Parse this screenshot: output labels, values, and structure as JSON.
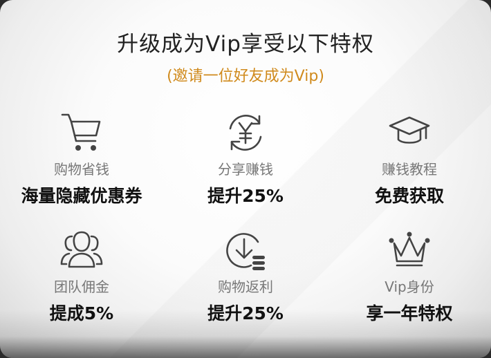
{
  "header": {
    "title": "升级成为Vip享受以下特权",
    "subtitle": "(邀请一位好友成为Vip)",
    "subtitle_color": "#d08a1c"
  },
  "benefits": [
    {
      "icon": "shopping-cart-icon",
      "label": "购物省钱",
      "value": "海量隐藏优惠券"
    },
    {
      "icon": "yuan-exchange-icon",
      "label": "分享赚钱",
      "value": "提升25%"
    },
    {
      "icon": "graduation-cap-icon",
      "label": "赚钱教程",
      "value": "免费获取"
    },
    {
      "icon": "team-users-icon",
      "label": "团队佣金",
      "value": "提成5%"
    },
    {
      "icon": "download-coins-icon",
      "label": "购物返利",
      "value": "提升25%"
    },
    {
      "icon": "crown-icon",
      "label": "Vip身份",
      "value": "享一年特权"
    }
  ]
}
